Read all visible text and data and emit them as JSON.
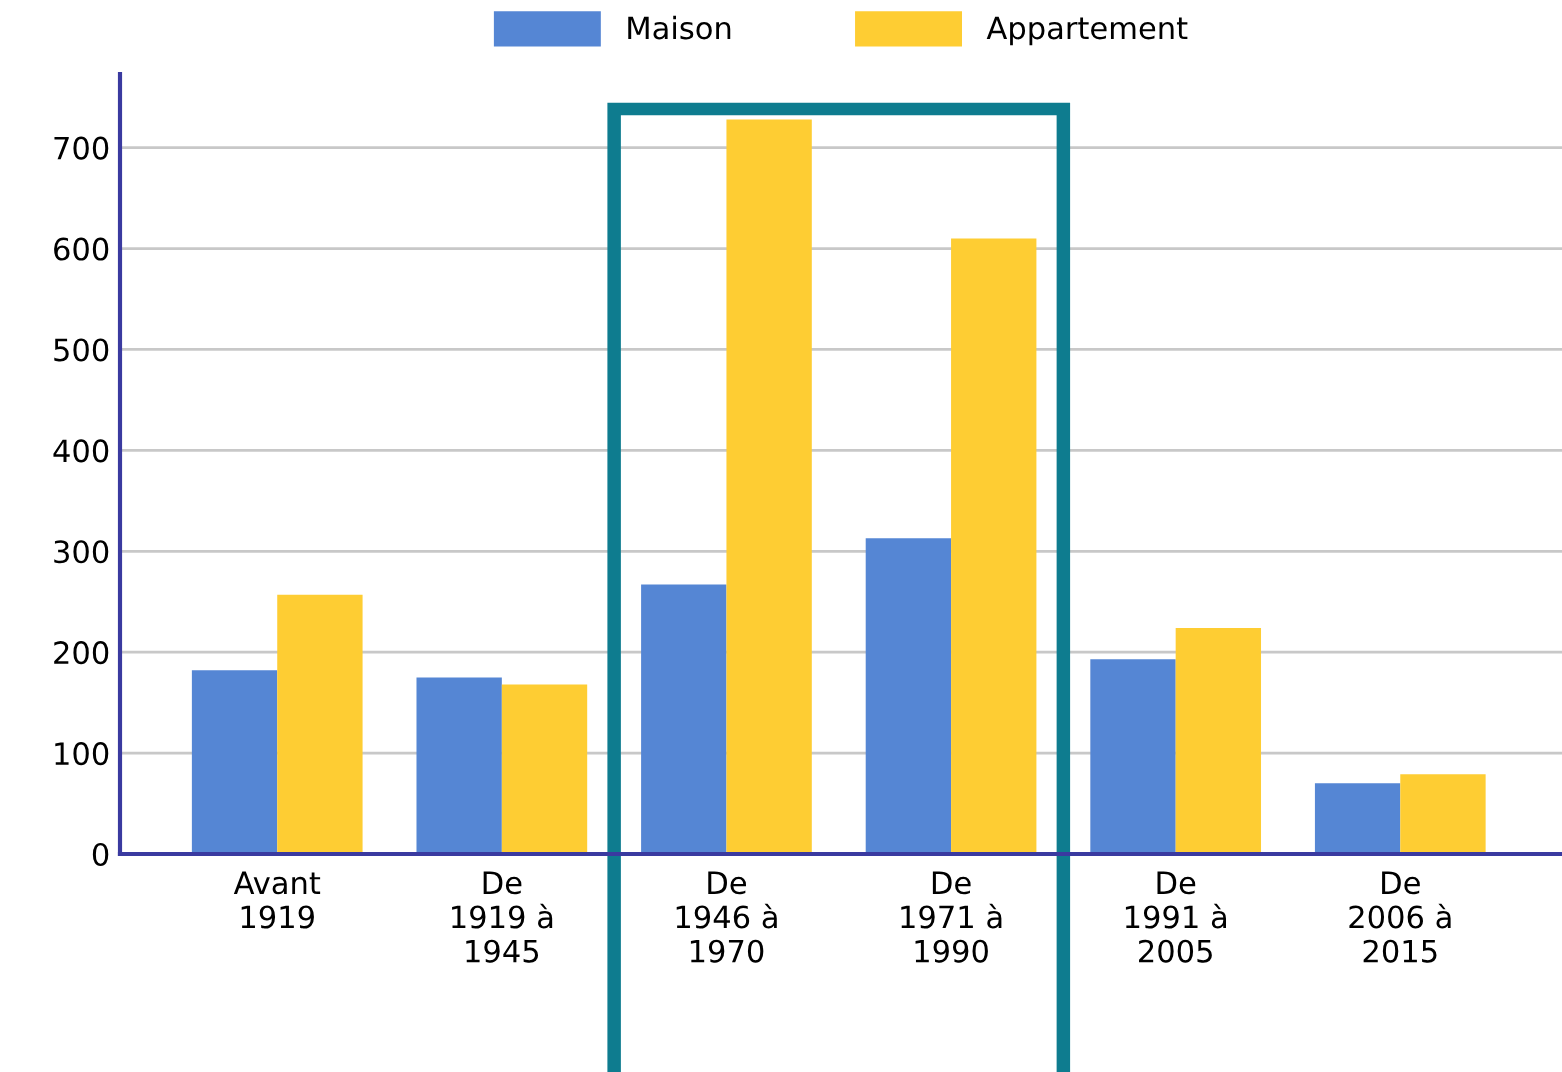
{
  "chart_data": {
    "type": "bar",
    "categories": [
      "Avant\n1919",
      "De\n1919 à\n1945",
      "De\n1946 à\n1970",
      "De\n1971 à\n1990",
      "De\n1991 à\n2005",
      "De\n2006 à\n2015"
    ],
    "series": [
      {
        "name": "Maison",
        "color": "#5586d4",
        "values": [
          182,
          175,
          267,
          313,
          193,
          70
        ]
      },
      {
        "name": "Appartement",
        "color": "#fecd33",
        "values": [
          257,
          168,
          728,
          610,
          224,
          79
        ]
      }
    ],
    "ylim": [
      0,
      773
    ],
    "yticks": [
      0,
      100,
      200,
      300,
      400,
      500,
      600,
      700
    ],
    "grid": "y",
    "legend": "top"
  }
}
